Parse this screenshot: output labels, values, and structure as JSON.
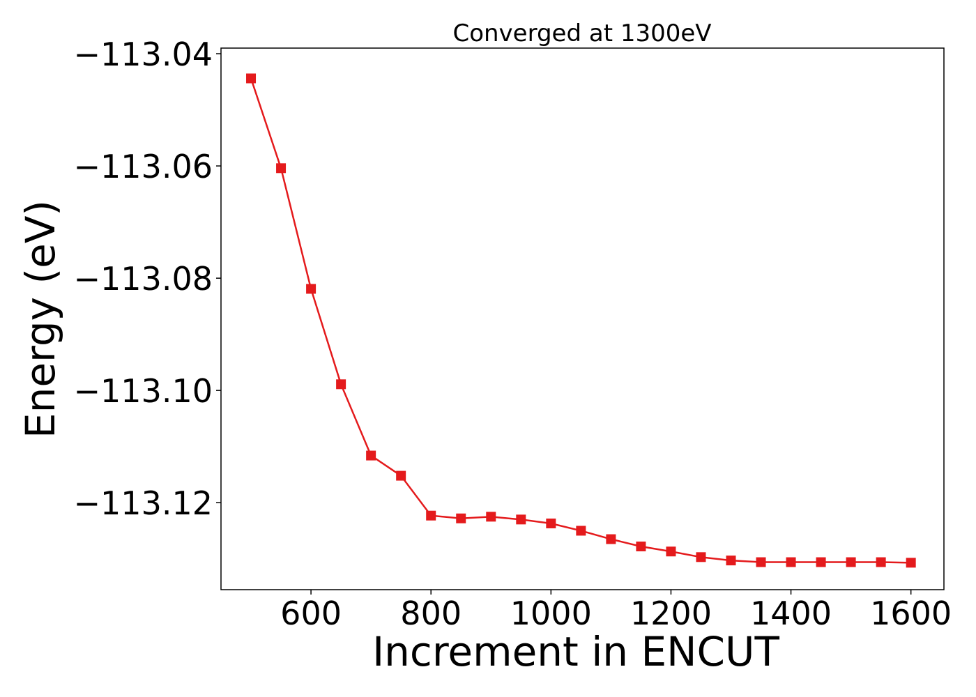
{
  "chart_data": {
    "type": "line",
    "title": "Converged at 1300eV",
    "xlabel": "Increment in ENCUT",
    "ylabel": "Energy (eV)",
    "xlim": [
      450,
      1655
    ],
    "ylim": [
      -113.1355,
      -113.039
    ],
    "xticks": [
      600,
      800,
      1000,
      1200,
      1400,
      1600
    ],
    "yticks": [
      -113.04,
      -113.06,
      -113.08,
      -113.1,
      -113.12
    ],
    "xtick_labels": [
      "600",
      "800",
      "1000",
      "1200",
      "1400",
      "1600"
    ],
    "ytick_labels": [
      "−113.04",
      "−113.06",
      "−113.08",
      "−113.10",
      "−113.12"
    ],
    "grid": false,
    "series": [
      {
        "color": "#e41a1c",
        "marker": "square",
        "x": [
          500,
          550,
          600,
          650,
          700,
          750,
          800,
          850,
          900,
          950,
          1000,
          1050,
          1100,
          1150,
          1200,
          1250,
          1300,
          1350,
          1400,
          1450,
          1500,
          1550,
          1600
        ],
        "y": [
          -113.0444,
          -113.0604,
          -113.0819,
          -113.0989,
          -113.1116,
          -113.1152,
          -113.1223,
          -113.1228,
          -113.1225,
          -113.123,
          -113.1237,
          -113.125,
          -113.1265,
          -113.1278,
          -113.1287,
          -113.1297,
          -113.1303,
          -113.1306,
          -113.1306,
          -113.1306,
          -113.1306,
          -113.1306,
          -113.1307
        ]
      }
    ]
  }
}
